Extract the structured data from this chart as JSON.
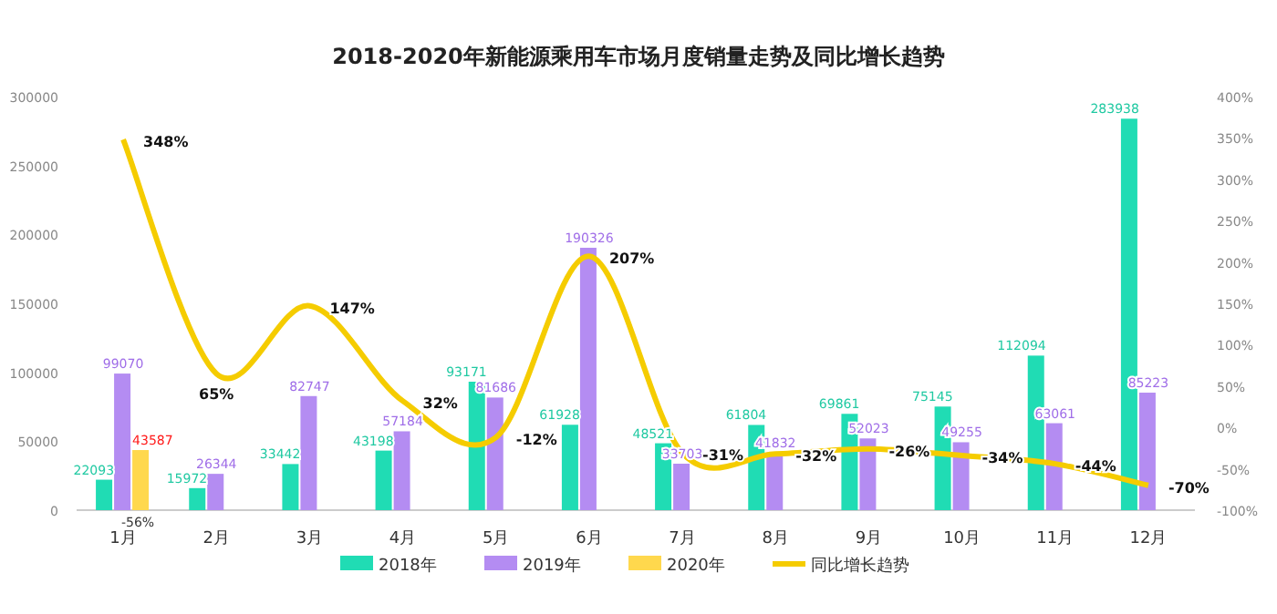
{
  "chart_data": {
    "type": "bar",
    "title": "2018-2020年新能源乘用车市场月度销量走势及同比增长趋势",
    "categories": [
      "1月",
      "2月",
      "3月",
      "4月",
      "5月",
      "6月",
      "7月",
      "8月",
      "9月",
      "10月",
      "11月",
      "12月"
    ],
    "series": [
      {
        "name": "2018年",
        "color": "#20dcb4",
        "values": [
          22093,
          15972,
          33442,
          43198,
          93171,
          61928,
          48521,
          61804,
          69861,
          75145,
          112094,
          283938
        ]
      },
      {
        "name": "2019年",
        "color": "#b48cf2",
        "values": [
          99070,
          26344,
          82747,
          57184,
          81686,
          190326,
          33703,
          41832,
          52023,
          49255,
          63061,
          85223
        ]
      },
      {
        "name": "2020年",
        "color": "#ffd84d",
        "values": [
          43587,
          null,
          null,
          null,
          null,
          null,
          null,
          null,
          null,
          null,
          null,
          null
        ]
      },
      {
        "name": "同比增长趋势",
        "type": "line",
        "axis": "y2",
        "color": "#f5cc00",
        "values": [
          348,
          65,
          147,
          32,
          -12,
          207,
          -31,
          -32,
          -26,
          -34,
          -44,
          -70
        ],
        "value_labels": [
          "348%",
          "65%",
          "147%",
          "32%",
          "-12%",
          "207%",
          "-31%",
          "-32%",
          "-26%",
          "-34%",
          "-44%",
          "-70%"
        ]
      }
    ],
    "ylim": [
      0,
      300000
    ],
    "yticks": [
      0,
      50000,
      100000,
      150000,
      200000,
      250000,
      300000
    ],
    "y2lim": [
      -100,
      400
    ],
    "y2ticks": [
      {
        "value": -100,
        "label": "-100%"
      },
      {
        "value": -50,
        "label": "-50%"
      },
      {
        "value": 0,
        "label": "0%"
      },
      {
        "value": 50,
        "label": "50%"
      },
      {
        "value": 100,
        "label": "100%"
      },
      {
        "value": 150,
        "label": "150%"
      },
      {
        "value": 200,
        "label": "200%"
      },
      {
        "value": 250,
        "label": "250%"
      },
      {
        "value": 300,
        "label": "300%"
      },
      {
        "value": 350,
        "label": "350%"
      },
      {
        "value": 400,
        "label": "400%"
      }
    ],
    "data_labels": true,
    "annotations": [
      "-56%"
    ],
    "legend": "bottom",
    "grid": false,
    "marker": "none"
  }
}
